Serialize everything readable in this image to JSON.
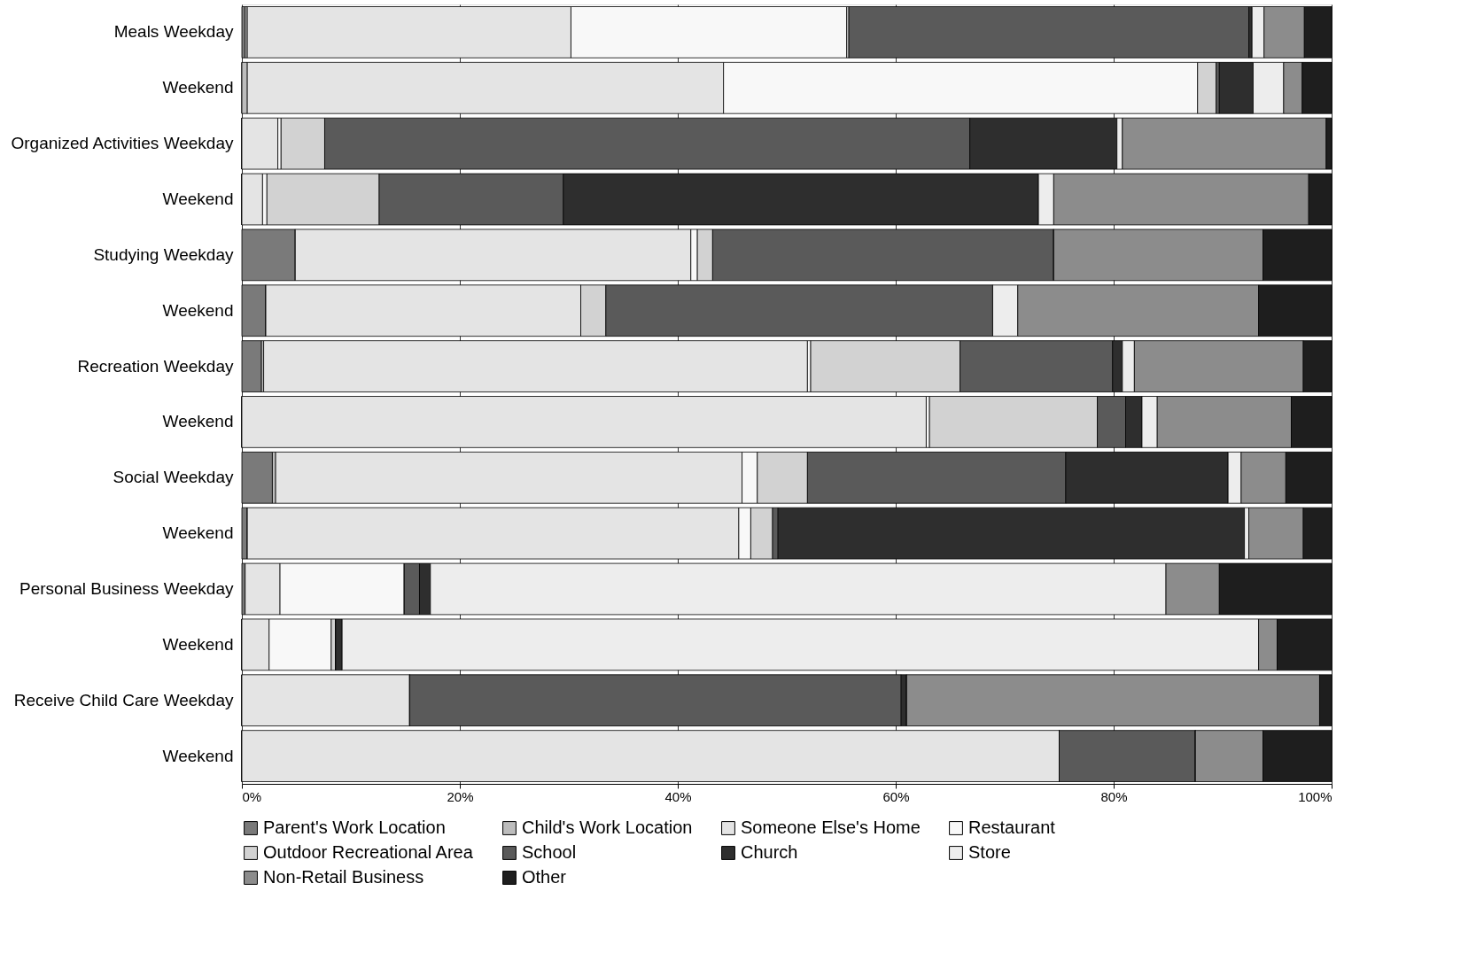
{
  "chart_data": {
    "type": "bar",
    "orientation": "horizontal",
    "stacked": true,
    "categories": [
      "Meals  Weekday",
      "Weekend",
      "Organized Activities  Weekday",
      "Weekend",
      "Studying  Weekday",
      "Weekend",
      "Recreation  Weekday",
      "Weekend",
      "Social  Weekday",
      "Weekend",
      "Personal Business  Weekday",
      "Weekend",
      "Receive Child Care  Weekday",
      "Weekend"
    ],
    "series": [
      {
        "name": "Parent's Work Location",
        "color": "#7a7a7a",
        "values": [
          0.3,
          0,
          0,
          0,
          4.9,
          2.2,
          1.8,
          0,
          2.8,
          0.5,
          0.3,
          0,
          0,
          0
        ]
      },
      {
        "name": "Child's Work Location",
        "color": "#bdbdbd",
        "values": [
          0.2,
          0.5,
          0,
          0,
          0,
          0,
          0.2,
          0,
          0.3,
          0,
          0,
          0,
          0,
          0
        ]
      },
      {
        "name": "Someone Else's Home",
        "color": "#e4e4e4",
        "values": [
          29.7,
          43.7,
          3.3,
          1.9,
          36.3,
          28.9,
          49.9,
          62.8,
          42.8,
          45.1,
          3.2,
          2.5,
          15.4,
          75.0
        ]
      },
      {
        "name": "Restaurant",
        "color": "#f8f8f8",
        "values": [
          25.3,
          43.5,
          0.3,
          0.4,
          0.6,
          0,
          0.3,
          0.3,
          1.4,
          1.1,
          11.4,
          5.7,
          0,
          0
        ]
      },
      {
        "name": "Outdoor Recreational Area",
        "color": "#d2d2d2",
        "values": [
          0.2,
          1.7,
          4.0,
          10.3,
          1.4,
          2.3,
          13.7,
          15.4,
          4.6,
          2.0,
          0,
          0.4,
          0,
          0
        ]
      },
      {
        "name": "School",
        "color": "#5a5a5a",
        "values": [
          36.7,
          0.3,
          59.2,
          16.9,
          31.3,
          35.5,
          14.0,
          2.6,
          23.7,
          0.5,
          1.4,
          0,
          45.1,
          12.5
        ]
      },
      {
        "name": "Church",
        "color": "#2e2e2e",
        "values": [
          0.3,
          3.1,
          13.5,
          43.6,
          0,
          0,
          0.9,
          1.5,
          14.9,
          42.8,
          1.0,
          0.6,
          0.5,
          0
        ]
      },
      {
        "name": "Store",
        "color": "#ededed",
        "values": [
          1.1,
          2.8,
          0.5,
          1.4,
          0,
          2.3,
          1.1,
          1.4,
          1.2,
          0.4,
          67.5,
          84.1,
          0,
          0
        ]
      },
      {
        "name": "Non-Retail Business",
        "color": "#8c8c8c",
        "values": [
          3.7,
          1.7,
          18.7,
          23.4,
          19.2,
          22.1,
          15.5,
          12.3,
          4.1,
          5.0,
          4.9,
          1.7,
          37.9,
          6.2
        ]
      },
      {
        "name": "Other",
        "color": "#1e1e1e",
        "values": [
          2.5,
          2.7,
          0.5,
          2.1,
          6.3,
          6.7,
          2.6,
          3.7,
          4.2,
          2.6,
          10.3,
          5.0,
          1.1,
          6.3
        ]
      }
    ],
    "xlim": [
      0,
      100
    ],
    "xticks": [
      {
        "value": 0,
        "label": "0%"
      },
      {
        "value": 20,
        "label": "20%"
      },
      {
        "value": 40,
        "label": "40%"
      },
      {
        "value": 60,
        "label": "60%"
      },
      {
        "value": 80,
        "label": "80%"
      },
      {
        "value": 100,
        "label": "100%"
      }
    ],
    "grid": "x",
    "legend": "bottom"
  }
}
